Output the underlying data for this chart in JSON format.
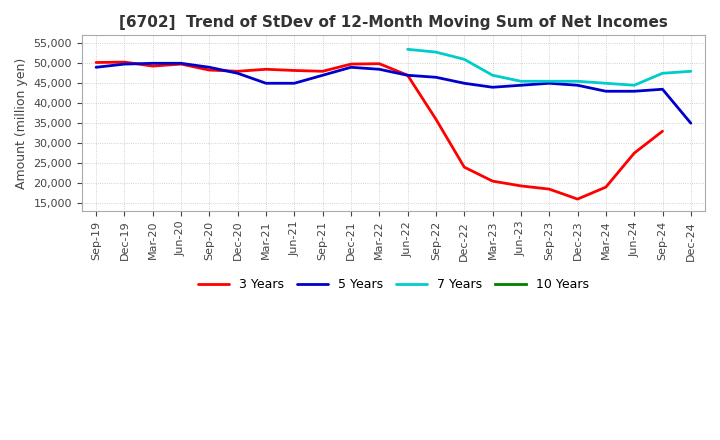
{
  "title": "[6702]  Trend of StDev of 12-Month Moving Sum of Net Incomes",
  "ylabel": "Amount (million yen)",
  "ylim": [
    13000,
    57000
  ],
  "yticks": [
    15000,
    20000,
    25000,
    30000,
    35000,
    40000,
    45000,
    50000,
    55000
  ],
  "background_color": "#ffffff",
  "grid_color": "#aaaaaa",
  "x_labels": [
    "Sep-19",
    "Dec-19",
    "Mar-20",
    "Jun-20",
    "Sep-20",
    "Dec-20",
    "Mar-21",
    "Jun-21",
    "Sep-21",
    "Dec-21",
    "Mar-22",
    "Jun-22",
    "Sep-22",
    "Dec-22",
    "Mar-23",
    "Jun-23",
    "Sep-23",
    "Dec-23",
    "Mar-24",
    "Jun-24",
    "Sep-24",
    "Dec-24"
  ],
  "series": {
    "3 Years": {
      "color": "#ff0000",
      "values": [
        50200,
        50300,
        49300,
        49800,
        48300,
        48000,
        48500,
        48200,
        48000,
        49800,
        49900,
        47000,
        36000,
        24000,
        20500,
        19300,
        18500,
        16000,
        19000,
        27500,
        33000,
        null
      ]
    },
    "5 Years": {
      "color": "#0000cc",
      "values": [
        49000,
        49800,
        50000,
        50000,
        49000,
        47500,
        45000,
        45000,
        47000,
        49000,
        48500,
        47000,
        46500,
        45000,
        44000,
        44500,
        45000,
        44500,
        43000,
        43000,
        43500,
        35000
      ]
    },
    "7 Years": {
      "color": "#00cccc",
      "values": [
        null,
        null,
        null,
        null,
        null,
        null,
        null,
        null,
        null,
        null,
        null,
        53500,
        52800,
        51000,
        47000,
        45500,
        45500,
        45500,
        45000,
        44500,
        47500,
        48000
      ]
    },
    "10 Years": {
      "color": "#008000",
      "values": [
        null,
        null,
        null,
        null,
        null,
        null,
        null,
        null,
        null,
        null,
        null,
        null,
        null,
        null,
        null,
        null,
        null,
        null,
        null,
        null,
        null,
        null
      ]
    }
  },
  "legend_loc": "lower center",
  "legend_ncol": 4,
  "title_color": "#333333",
  "title_fontsize": 11,
  "tick_fontsize": 8,
  "ylabel_fontsize": 9
}
